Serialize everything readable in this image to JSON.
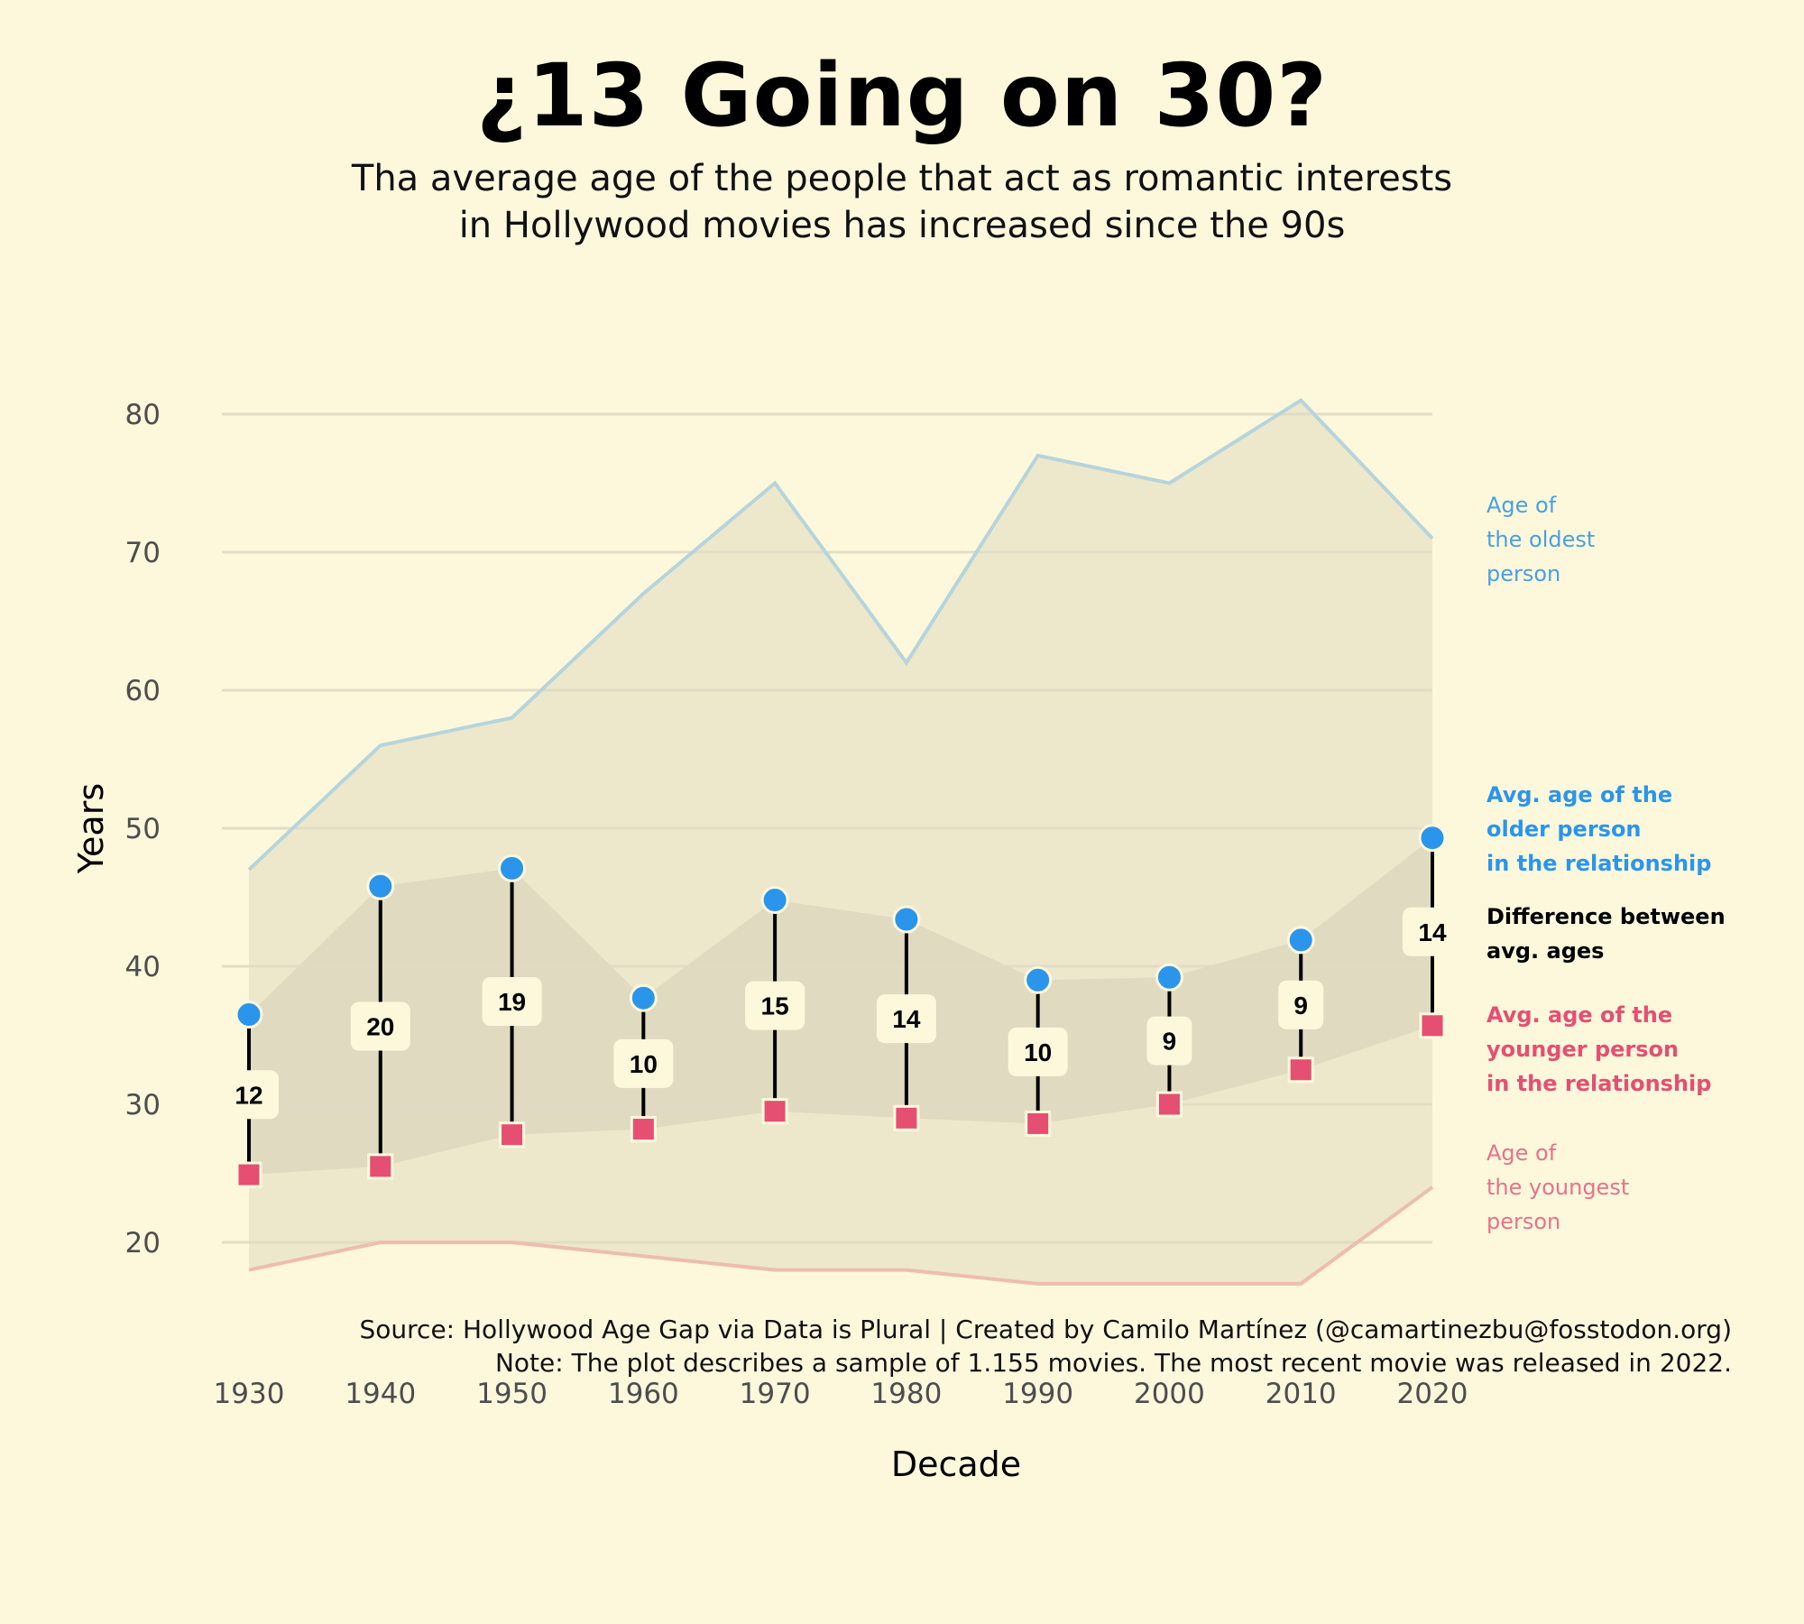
{
  "title": "¿13 Going on 30?",
  "subtitle": [
    "Tha average age of the people that act as romantic interests",
    "in Hollywood movies has increased since the 90s"
  ],
  "caption": [
    "Source: Hollywood Age Gap via Data is Plural | Created by Camilo Martínez (@camartinezbu@fosstodon.org)",
    "Note: The plot describes a sample of 1.155 movies. The most recent movie was released in 2022."
  ],
  "colors": {
    "background": "#fdf8dc",
    "outer_band": "#ede8cb",
    "inner_band": "#e0dac0",
    "grid": "#e0dcc4",
    "oldest_line": "#b6d4dc",
    "youngest_line": "#efbcb0",
    "older_point": "#2b95eb",
    "younger_point": "#e54f71",
    "oldest_label": "#4a9fe0",
    "youngest_label": "#e8728a",
    "text": "#000000",
    "tick_text": "#4d4d4d"
  },
  "chart_data": {
    "type": "line",
    "xlabel": "Decade",
    "ylabel": "Years",
    "x": [
      1930,
      1940,
      1950,
      1960,
      1970,
      1980,
      1990,
      2000,
      2010,
      2020
    ],
    "x_ticks": [
      "1930",
      "1940",
      "1950",
      "1960",
      "1970",
      "1980",
      "1990",
      "2000",
      "2010",
      "2020"
    ],
    "y_ticks": [
      20,
      30,
      40,
      50,
      60,
      70,
      80
    ],
    "ylim": [
      12,
      84
    ],
    "grid": true,
    "series": [
      {
        "name": "Age of the oldest person",
        "label_lines": [
          "Age of",
          "the oldest",
          "person"
        ],
        "values": [
          47,
          56,
          58,
          67,
          75,
          62,
          77,
          75,
          81,
          71
        ]
      },
      {
        "name": "Avg. age of the older person in the relationship",
        "label_lines": [
          "Avg. age of the",
          "older person",
          "in the relationship"
        ],
        "values": [
          36.5,
          45.8,
          47.1,
          37.7,
          44.8,
          43.4,
          39.0,
          39.2,
          41.9,
          49.3
        ]
      },
      {
        "name": "Avg. age of the younger person in the relationship",
        "label_lines": [
          "Avg. age of the",
          "younger person",
          "in the relationship"
        ],
        "values": [
          24.9,
          25.5,
          27.8,
          28.2,
          29.5,
          29.0,
          28.6,
          30.0,
          32.5,
          35.7
        ]
      },
      {
        "name": "Age of the youngest person",
        "label_lines": [
          "Age of",
          "the youngest",
          "person"
        ],
        "values": [
          18,
          20,
          20,
          19,
          18,
          18,
          17,
          17,
          17,
          24
        ]
      }
    ],
    "difference": {
      "name": "Difference between avg. ages",
      "label_lines": [
        "Difference between",
        "avg. ages"
      ],
      "values": [
        "12",
        "20",
        "19",
        "10",
        "15",
        "14",
        "10",
        "9",
        "9",
        "14"
      ]
    }
  }
}
